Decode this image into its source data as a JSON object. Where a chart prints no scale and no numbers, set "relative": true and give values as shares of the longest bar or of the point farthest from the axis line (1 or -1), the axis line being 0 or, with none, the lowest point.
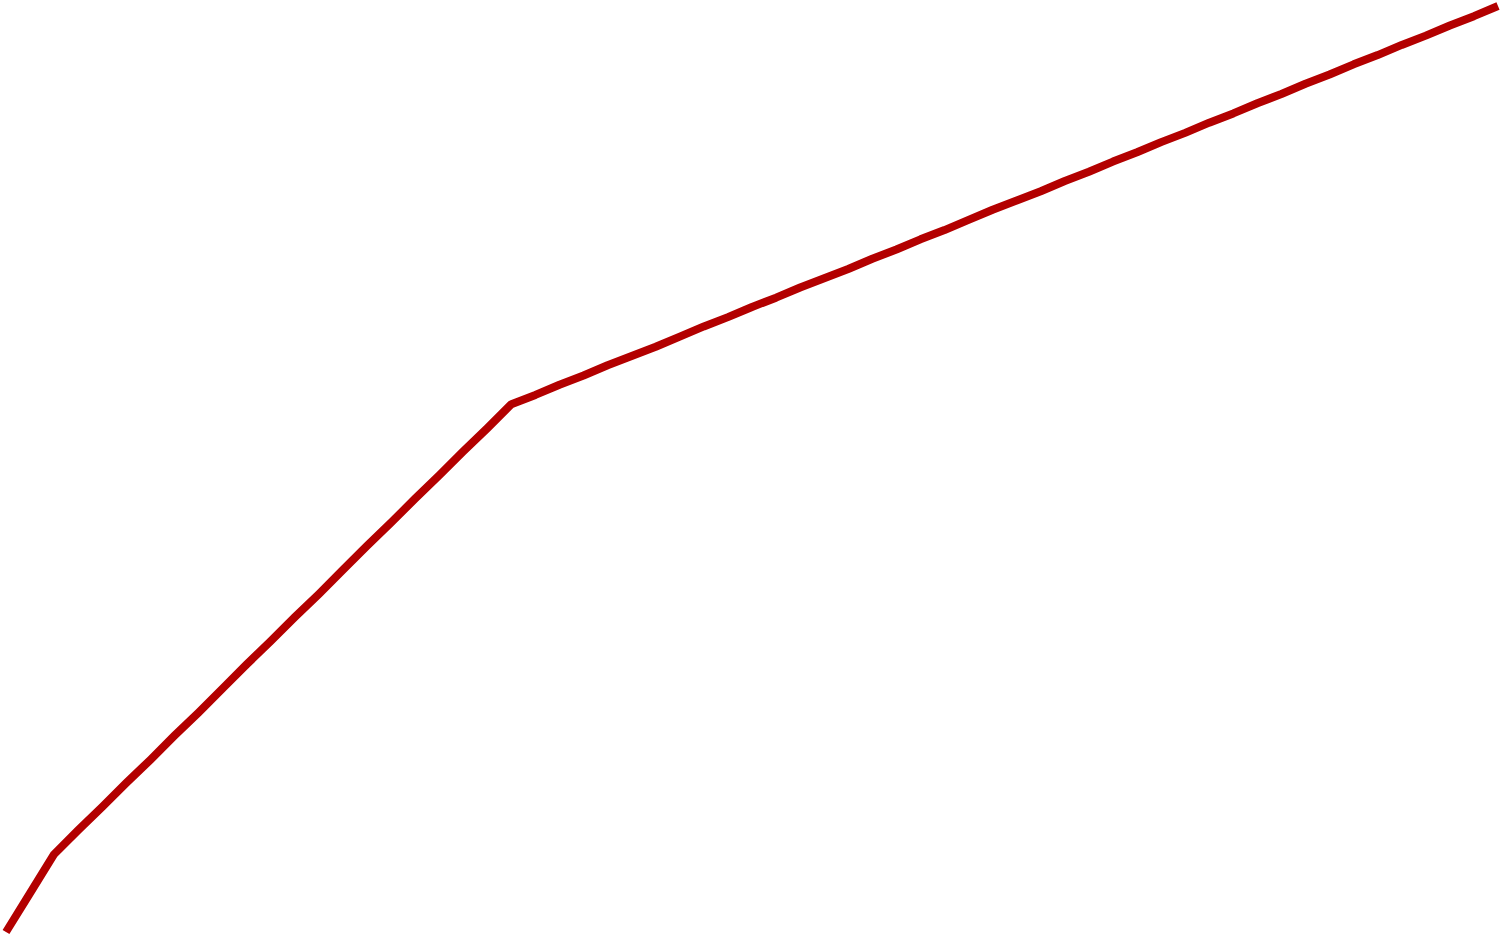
{
  "chart_data": {
    "type": "line",
    "relative": true,
    "categories": [
      null,
      null,
      null,
      null,
      null,
      null,
      null,
      null,
      null,
      null,
      null,
      null,
      null,
      null,
      null,
      null,
      null,
      null,
      null,
      null,
      null,
      null,
      null,
      null,
      null,
      null,
      null,
      null,
      null,
      null,
      null,
      null,
      null,
      null,
      null,
      null,
      null,
      null,
      null,
      null,
      null,
      null,
      null,
      null,
      null,
      null,
      null,
      null,
      null,
      null,
      null,
      null,
      null,
      null,
      null,
      null,
      null,
      null,
      null,
      null,
      null,
      null,
      null
    ],
    "series": [
      {
        "color": "#b30000",
        "values": [
          0,
          0.042,
          0.084,
          0.11,
          0.135,
          0.161,
          0.186,
          0.212,
          0.237,
          0.263,
          0.289,
          0.314,
          0.34,
          0.365,
          0.391,
          0.417,
          0.442,
          0.468,
          0.493,
          0.519,
          0.544,
          0.57,
          0.58,
          0.591,
          0.601,
          0.612,
          0.622,
          0.632,
          0.643,
          0.654,
          0.664,
          0.675,
          0.685,
          0.696,
          0.706,
          0.716,
          0.727,
          0.737,
          0.748,
          0.758,
          0.769,
          0.78,
          0.79,
          0.8,
          0.811,
          0.821,
          0.832,
          0.842,
          0.853,
          0.863,
          0.874,
          0.884,
          0.895,
          0.905,
          0.916,
          0.926,
          0.937,
          0.947,
          0.958,
          0.968,
          0.979,
          0.989,
          1
        ]
      }
    ],
    "legend": false,
    "marker": "none",
    "line_style": "solid"
  }
}
